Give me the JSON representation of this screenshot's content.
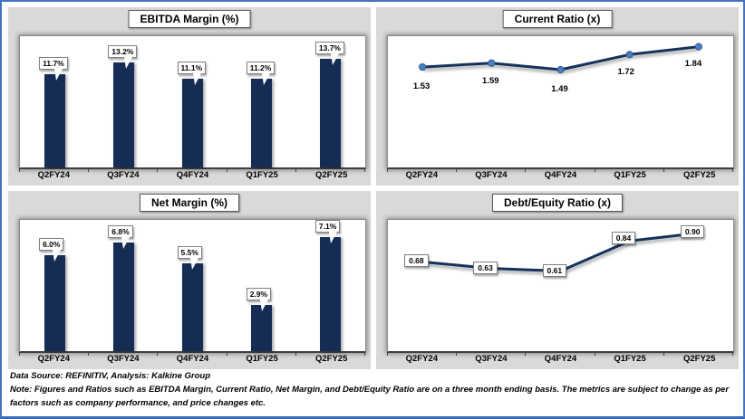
{
  "colors": {
    "frame_border": "#4472c4",
    "panel_bg": "#d9d9d9",
    "bar_fill": "#152c55",
    "line_stroke": "#16325c",
    "marker_fill": "#4a7ebd",
    "marker_stroke": "#305a96"
  },
  "chart_data": [
    {
      "type": "bar",
      "title": "EBITDA Margin (%)",
      "categories": [
        "Q2FY24",
        "Q3FY24",
        "Q4FY24",
        "Q1FY25",
        "Q2FY25"
      ],
      "values": [
        11.7,
        13.2,
        11.1,
        11.2,
        13.7
      ],
      "labels": [
        "11.7%",
        "13.2%",
        "11.1%",
        "11.2%",
        "13.7%"
      ],
      "xlabel": "",
      "ylabel": "",
      "ylim": [
        0,
        16.5
      ],
      "grid": false,
      "legend": "none",
      "label_style": "callout"
    },
    {
      "type": "line",
      "title": "Current Ratio (x)",
      "categories": [
        "Q2FY24",
        "Q3FY24",
        "Q4FY24",
        "Q1FY25",
        "Q2FY25"
      ],
      "values": [
        1.53,
        1.59,
        1.49,
        1.72,
        1.84
      ],
      "labels": [
        "1.53",
        "1.59",
        "1.49",
        "1.72",
        "1.84"
      ],
      "xlabel": "",
      "ylabel": "",
      "ylim": [
        0,
        2.0
      ],
      "grid": false,
      "legend": "none",
      "markers": true,
      "label_style": "plain",
      "label_dx": [
        -1,
        -1,
        -1,
        -4,
        -6
      ],
      "label_dy": [
        16,
        14,
        16,
        14,
        13
      ]
    },
    {
      "type": "bar",
      "title": "Net Margin (%)",
      "categories": [
        "Q2FY24",
        "Q3FY24",
        "Q4FY24",
        "Q1FY25",
        "Q2FY25"
      ],
      "values": [
        6.0,
        6.8,
        5.5,
        2.9,
        7.1
      ],
      "labels": [
        "6.0%",
        "6.8%",
        "5.5%",
        "2.9%",
        "7.1%"
      ],
      "xlabel": "",
      "ylabel": "",
      "ylim": [
        0,
        8.2
      ],
      "grid": false,
      "legend": "none",
      "label_style": "callout"
    },
    {
      "type": "line",
      "title": "Debt/Equity Ratio (x)",
      "categories": [
        "Q2FY24",
        "Q3FY24",
        "Q4FY24",
        "Q1FY25",
        "Q2FY25"
      ],
      "values": [
        0.68,
        0.63,
        0.61,
        0.84,
        0.9
      ],
      "labels": [
        "0.68",
        "0.63",
        "0.61",
        "0.84",
        "0.90"
      ],
      "xlabel": "",
      "ylabel": "",
      "ylim": [
        0,
        1.0
      ],
      "grid": false,
      "legend": "none",
      "markers": false,
      "label_style": "box",
      "label_dx": [
        -3,
        -3,
        -3,
        -3,
        -3
      ],
      "label_dy": [
        0,
        0,
        0,
        -2,
        -1
      ]
    }
  ],
  "footer": {
    "source_line": "Data Source: REFINITIV, Analysis: Kalkine Group",
    "note_line": "Note: Figures and Ratios such as EBITDA Margin, Current Ratio, Net Margin, and Debt/Equity Ratio are on a three month ending basis. The metrics are subject to change as per factors such as company performance, and price changes etc."
  }
}
